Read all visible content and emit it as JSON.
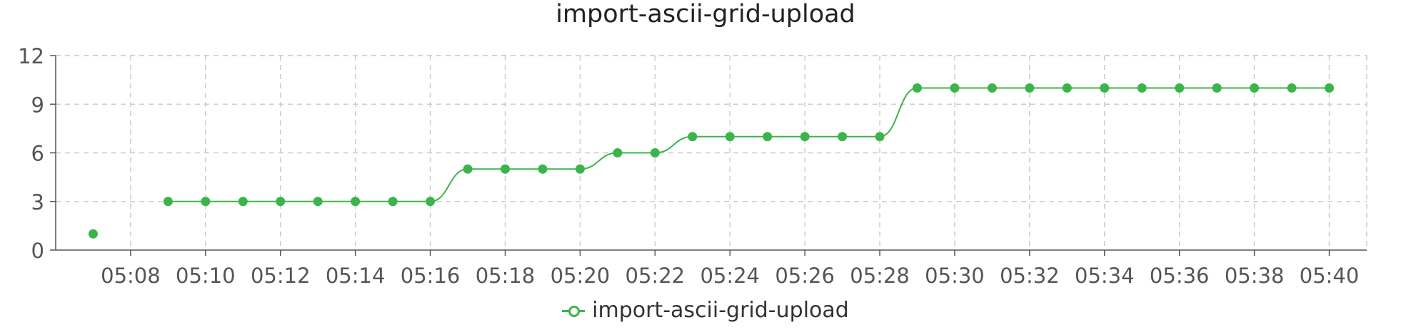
{
  "title": "import-ascii-grid-upload",
  "colors": {
    "series": "#3cb44b",
    "grid": "#cccccc",
    "axis": "#555555",
    "tick_text": "#555555"
  },
  "chart_data": {
    "type": "line",
    "title": "import-ascii-grid-upload",
    "xlabel": "",
    "ylabel": "",
    "ylim": [
      0,
      12
    ],
    "yticks": [
      0,
      3,
      6,
      9,
      12
    ],
    "xlim": [
      "05:06",
      "05:41"
    ],
    "xticks": [
      "05:08",
      "05:10",
      "05:12",
      "05:14",
      "05:16",
      "05:18",
      "05:20",
      "05:22",
      "05:24",
      "05:26",
      "05:28",
      "05:30",
      "05:32",
      "05:34",
      "05:36",
      "05:38",
      "05:40"
    ],
    "grid": true,
    "legend": "bottom-center",
    "series": [
      {
        "name": "import-ascii-grid-upload",
        "color": "#3cb44b",
        "points": [
          {
            "x": "05:07",
            "y": 1
          },
          {
            "x": "05:09",
            "y": 3
          },
          {
            "x": "05:10",
            "y": 3
          },
          {
            "x": "05:11",
            "y": 3
          },
          {
            "x": "05:12",
            "y": 3
          },
          {
            "x": "05:13",
            "y": 3
          },
          {
            "x": "05:14",
            "y": 3
          },
          {
            "x": "05:15",
            "y": 3
          },
          {
            "x": "05:16",
            "y": 3
          },
          {
            "x": "05:17",
            "y": 5
          },
          {
            "x": "05:18",
            "y": 5
          },
          {
            "x": "05:19",
            "y": 5
          },
          {
            "x": "05:20",
            "y": 5
          },
          {
            "x": "05:21",
            "y": 6
          },
          {
            "x": "05:22",
            "y": 6
          },
          {
            "x": "05:23",
            "y": 7
          },
          {
            "x": "05:24",
            "y": 7
          },
          {
            "x": "05:25",
            "y": 7
          },
          {
            "x": "05:26",
            "y": 7
          },
          {
            "x": "05:27",
            "y": 7
          },
          {
            "x": "05:28",
            "y": 7
          },
          {
            "x": "05:29",
            "y": 10
          },
          {
            "x": "05:30",
            "y": 10
          },
          {
            "x": "05:31",
            "y": 10
          },
          {
            "x": "05:32",
            "y": 10
          },
          {
            "x": "05:33",
            "y": 10
          },
          {
            "x": "05:34",
            "y": 10
          },
          {
            "x": "05:35",
            "y": 10
          },
          {
            "x": "05:36",
            "y": 10
          },
          {
            "x": "05:37",
            "y": 10
          },
          {
            "x": "05:38",
            "y": 10
          },
          {
            "x": "05:39",
            "y": 10
          },
          {
            "x": "05:40",
            "y": 10
          }
        ]
      }
    ]
  },
  "legend": {
    "label": "import-ascii-grid-upload",
    "icon": "line-with-circle-marker-icon"
  }
}
